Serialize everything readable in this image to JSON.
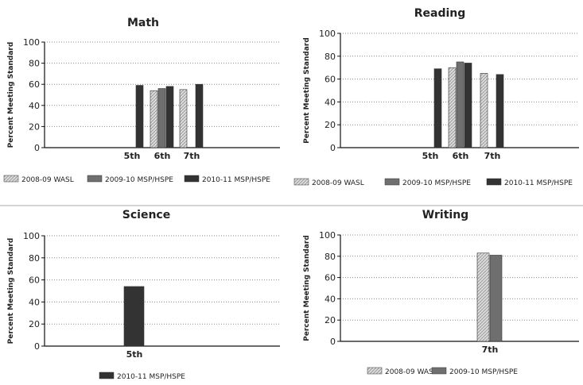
{
  "colors": {
    "wasl_2008_09": "#c9c9c9",
    "msp_2009_10": "#6f6f6f",
    "msp_2010_11": "#333333",
    "grid": "#8a8a8a",
    "axis": "#111111",
    "separator": "#aaaaaa"
  },
  "chart_data": [
    {
      "type": "bar",
      "title": "Math",
      "ylabel": "Percent Meeting Standard",
      "xlabel": "",
      "ylim": [
        0,
        100
      ],
      "yticks": [
        0,
        20,
        40,
        60,
        80,
        100
      ],
      "categories": [
        "5th",
        "6th",
        "7th"
      ],
      "series": [
        {
          "name": "2008-09 WASL",
          "color_key": "wasl_2008_09",
          "values": [
            null,
            54,
            55
          ]
        },
        {
          "name": "2009-10 MSP/HSPE",
          "color_key": "msp_2009_10",
          "values": [
            null,
            56,
            null
          ]
        },
        {
          "name": "2010-11 MSP/HSPE",
          "color_key": "msp_2010_11",
          "values": [
            59,
            58,
            60
          ]
        }
      ],
      "legend": [
        "2008-09 WASL",
        "2009-10 MSP/HSPE",
        "2010-11 MSP/HSPE"
      ],
      "grid": true,
      "legend_position": "bottom"
    },
    {
      "type": "bar",
      "title": "Reading",
      "ylabel": "Percent Meeting Standard",
      "xlabel": "",
      "ylim": [
        0,
        100
      ],
      "yticks": [
        0,
        20,
        40,
        60,
        80,
        100
      ],
      "categories": [
        "5th",
        "6th",
        "7th"
      ],
      "series": [
        {
          "name": "2008-09 WASL",
          "color_key": "wasl_2008_09",
          "values": [
            null,
            70,
            65
          ]
        },
        {
          "name": "2009-10 MSP/HSPE",
          "color_key": "msp_2009_10",
          "values": [
            null,
            75,
            null
          ]
        },
        {
          "name": "2010-11 MSP/HSPE",
          "color_key": "msp_2010_11",
          "values": [
            69,
            74,
            64
          ]
        }
      ],
      "legend": [
        "2008-09 WASL",
        "2009-10 MSP/HSPE",
        "2010-11 MSP/HSPE"
      ],
      "grid": true,
      "legend_position": "bottom"
    },
    {
      "type": "bar",
      "title": "Science",
      "ylabel": "Percent Meeting Standard",
      "xlabel": "",
      "ylim": [
        0,
        100
      ],
      "yticks": [
        0,
        20,
        40,
        60,
        80,
        100
      ],
      "categories": [
        "5th"
      ],
      "series": [
        {
          "name": "2010-11 MSP/HSPE",
          "color_key": "msp_2010_11",
          "values": [
            54
          ]
        }
      ],
      "legend": [
        "2010-11 MSP/HSPE"
      ],
      "grid": true,
      "legend_position": "bottom"
    },
    {
      "type": "bar",
      "title": "Writing",
      "ylabel": "Percent Meeting Standard",
      "xlabel": "",
      "ylim": [
        0,
        100
      ],
      "yticks": [
        0,
        20,
        40,
        60,
        80,
        100
      ],
      "categories": [
        "7th"
      ],
      "series": [
        {
          "name": "2008-09 WASL",
          "color_key": "wasl_2008_09",
          "values": [
            83
          ]
        },
        {
          "name": "2009-10 MSP/HSPE",
          "color_key": "msp_2009_10",
          "values": [
            81
          ]
        }
      ],
      "legend": [
        "2008-09 WASL",
        "2009-10 MSP/HSPE"
      ],
      "grid": true,
      "legend_position": "bottom"
    }
  ]
}
